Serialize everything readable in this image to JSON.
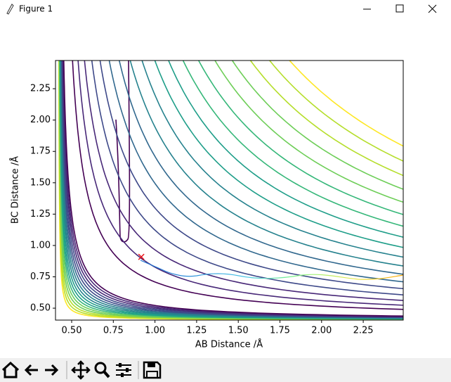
{
  "window": {
    "title": "Figure 1"
  },
  "chart_data": {
    "type": "contour",
    "xlabel": "AB Distance /Å",
    "ylabel": "BC Distance /Å",
    "xlim": [
      0.403,
      2.49
    ],
    "ylim": [
      0.405,
      2.475
    ],
    "xticks": [
      {
        "value": 0.5,
        "label": "0.50"
      },
      {
        "value": 0.75,
        "label": "0.75"
      },
      {
        "value": 1.0,
        "label": "1.00"
      },
      {
        "value": 1.25,
        "label": "1.25"
      },
      {
        "value": 1.5,
        "label": "1.50"
      },
      {
        "value": 1.75,
        "label": "1.75"
      },
      {
        "value": 2.0,
        "label": "2.00"
      },
      {
        "value": 2.25,
        "label": "2.25"
      }
    ],
    "yticks": [
      {
        "value": 0.5,
        "label": "0.50"
      },
      {
        "value": 0.75,
        "label": "0.75"
      },
      {
        "value": 1.0,
        "label": "1.00"
      },
      {
        "value": 1.25,
        "label": "1.25"
      },
      {
        "value": 1.5,
        "label": "1.50"
      },
      {
        "value": 1.75,
        "label": "1.75"
      },
      {
        "value": 2.0,
        "label": "2.00"
      },
      {
        "value": 2.25,
        "label": "2.25"
      }
    ],
    "marker": {
      "x": 0.918,
      "y": 0.909,
      "color": "#e8141b"
    }
  }
}
